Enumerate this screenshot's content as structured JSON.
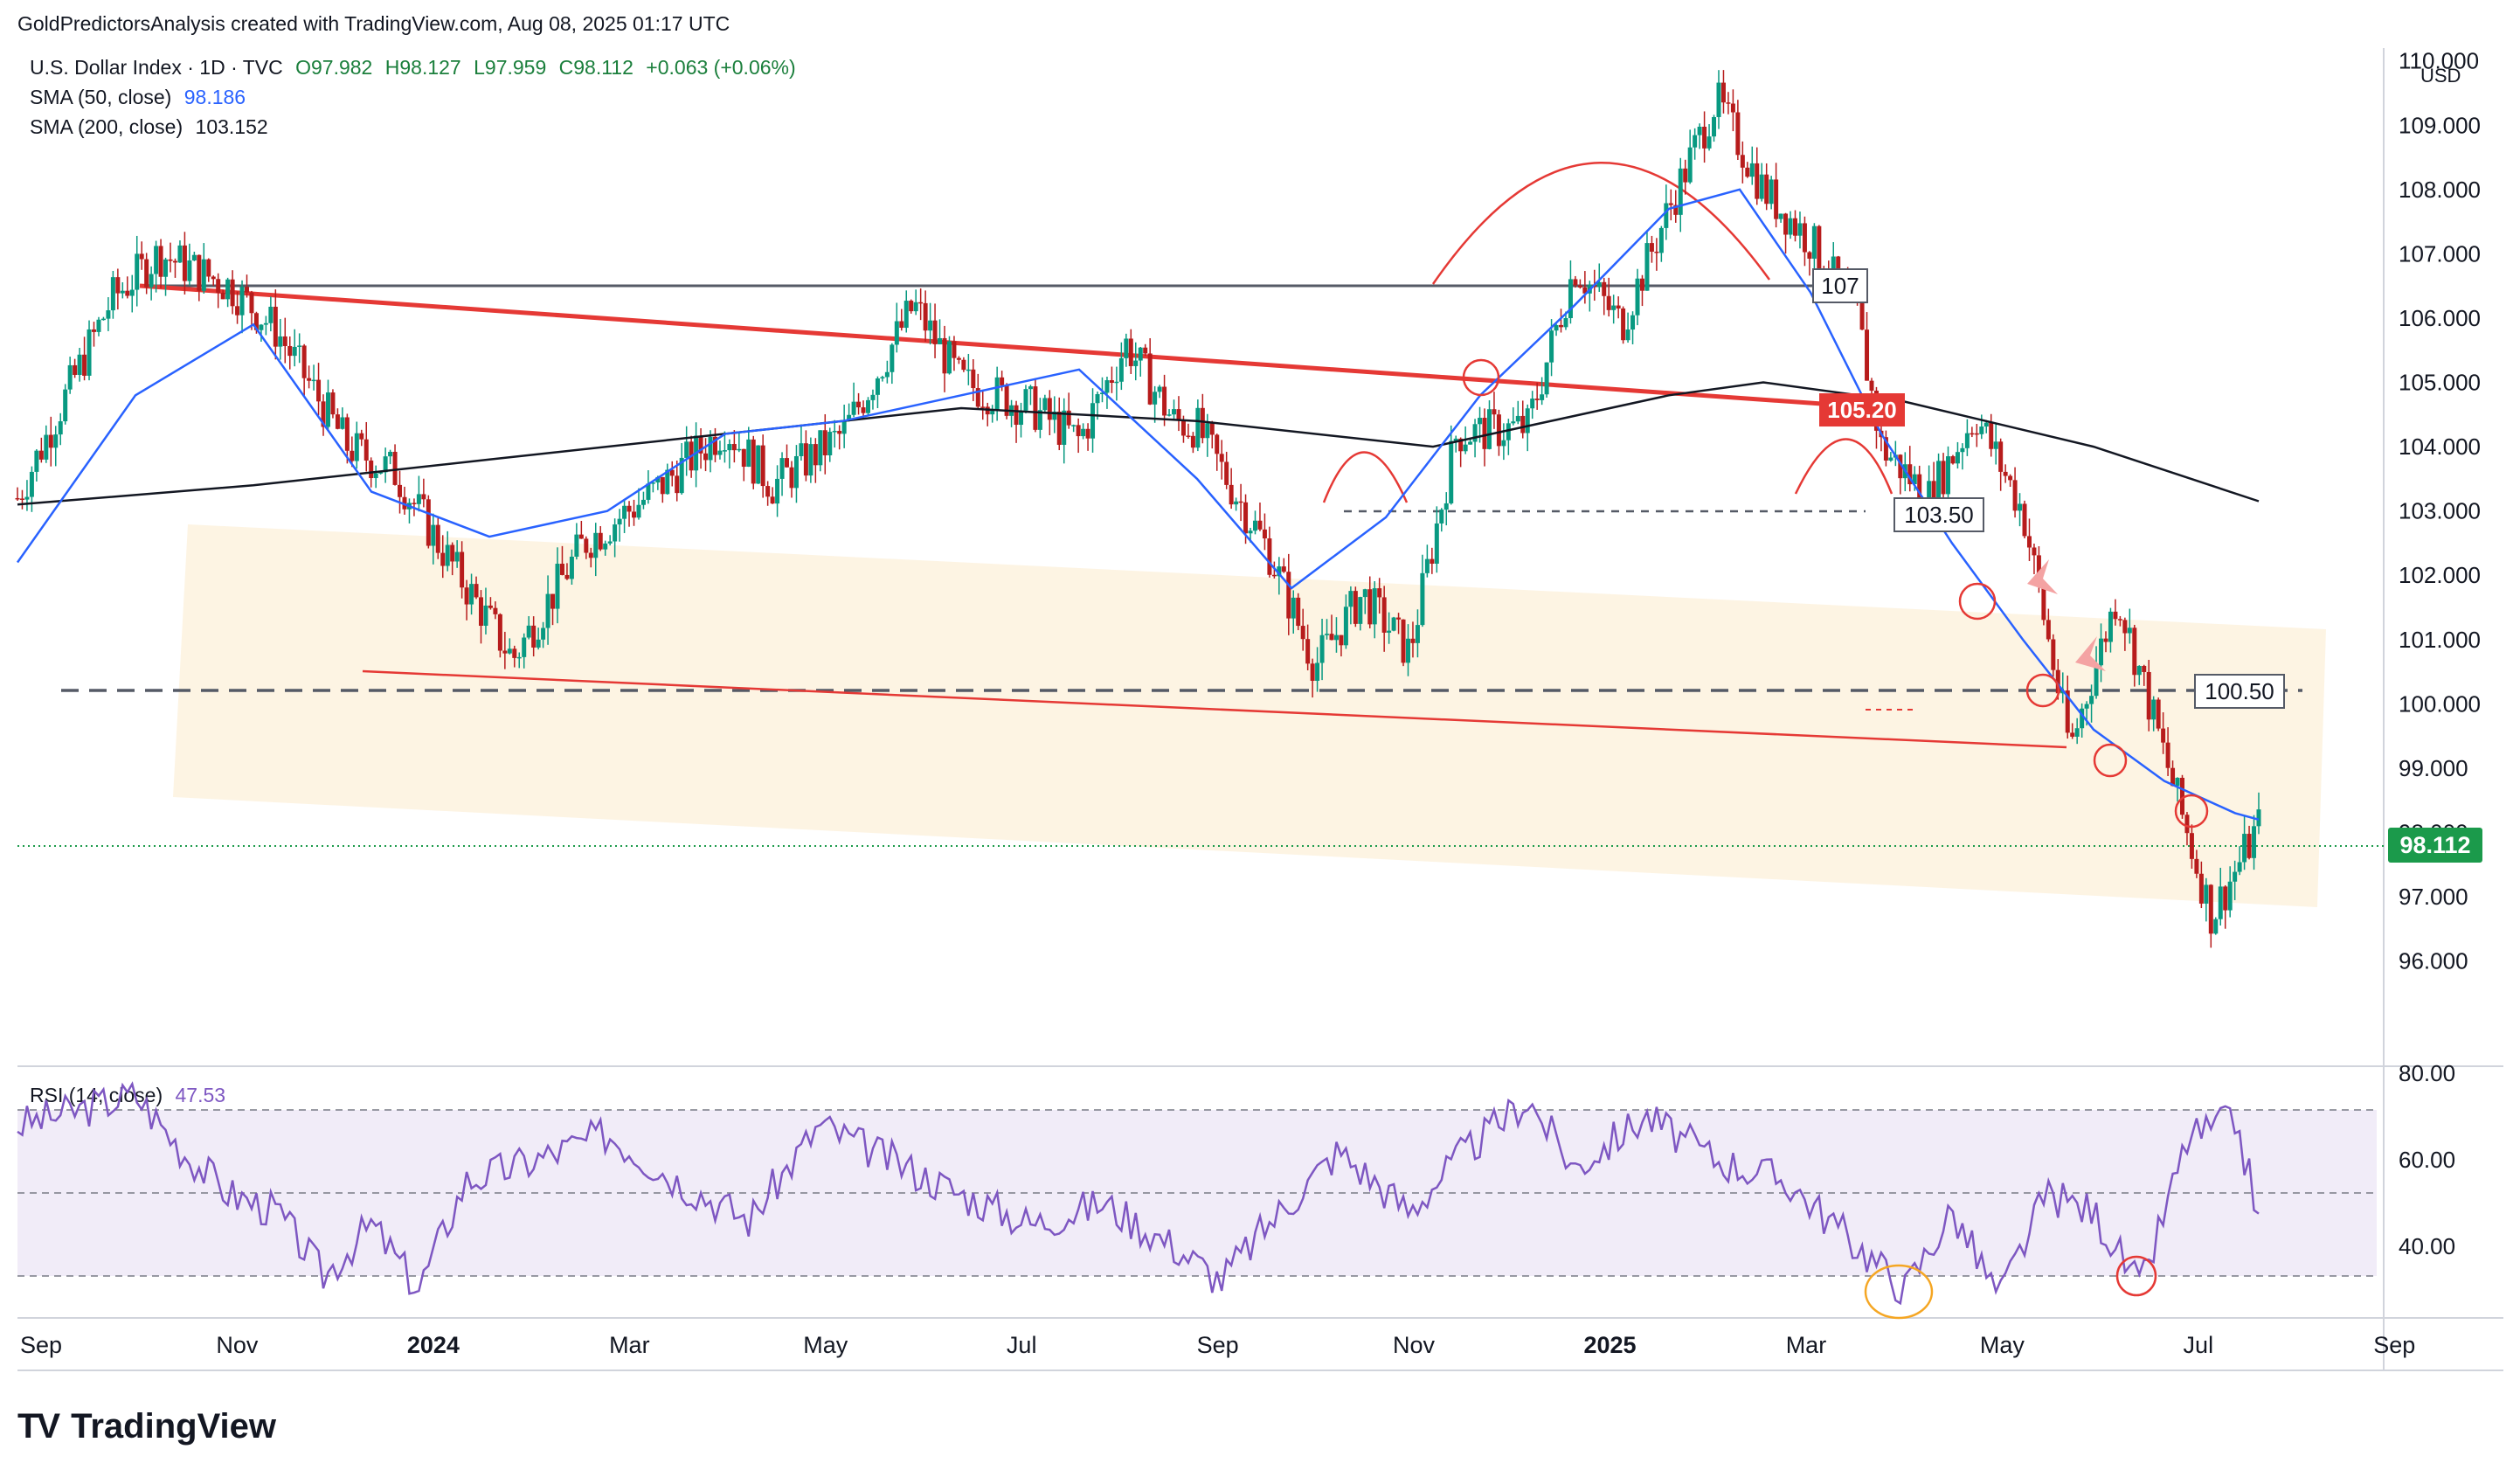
{
  "header": {
    "attribution": "GoldPredictorsAnalysis created with TradingView.com, Aug 08, 2025 01:17 UTC"
  },
  "legend": {
    "symbol": "U.S. Dollar Index · 1D · TVC",
    "open": "O97.982",
    "high": "H98.127",
    "low": "L97.959",
    "close": "C98.112",
    "change": "+0.063 (+0.06%)",
    "sma50_label": "SMA (50, close)",
    "sma50_value": "98.186",
    "sma200_label": "SMA (200, close)",
    "sma200_value": "103.152",
    "rsi_label": "RSI (14, close)",
    "rsi_value": "47.53"
  },
  "price_axis": {
    "currency": "USD",
    "current_price": "98.112",
    "current_price_color": "#1b9a4b"
  },
  "annotations": {
    "level_107": "107",
    "level_105": "105.20",
    "level_103": "103.50",
    "level_100": "100.50"
  },
  "brand": {
    "logo": "TV",
    "name": "TradingView"
  },
  "colors": {
    "up": "#089981",
    "down": "#b71c1c",
    "sma50": "#2962ff",
    "sma200": "#131722",
    "rsi": "#7e57c2",
    "channel_fill": "#fdf3e1",
    "trendline": "#e53935"
  },
  "chart_data": [
    {
      "type": "candlestick",
      "title": "U.S. Dollar Index · 1D · TVC",
      "x_ticks": [
        "Sep",
        "Nov",
        "2024",
        "Mar",
        "May",
        "Jul",
        "Sep",
        "Nov",
        "2025",
        "Mar",
        "May",
        "Jul",
        "Sep"
      ],
      "y_ticks": [
        "96.000",
        "97.000",
        "98.000",
        "99.000",
        "100.000",
        "101.000",
        "102.000",
        "103.000",
        "104.000",
        "105.000",
        "106.000",
        "107.000",
        "108.000",
        "109.000",
        "110.000"
      ],
      "ylim": [
        94.5,
        110.2
      ],
      "close_path_x": [
        0,
        0.04,
        0.06,
        0.09,
        0.11,
        0.14,
        0.16,
        0.18,
        0.21,
        0.24,
        0.27,
        0.3,
        0.32,
        0.35,
        0.38,
        0.4,
        0.43,
        0.45,
        0.47,
        0.49,
        0.5,
        0.53,
        0.55,
        0.57,
        0.59,
        0.61,
        0.64,
        0.66,
        0.68,
        0.7,
        0.72,
        0.74,
        0.76,
        0.78,
        0.79,
        0.81,
        0.83,
        0.85,
        0.87,
        0.89,
        0.91,
        0.93,
        0.95
      ],
      "close_path_y": [
        103.2,
        106.3,
        107.0,
        106.5,
        105.8,
        104.0,
        103.6,
        102.4,
        100.7,
        102.5,
        103.3,
        104.3,
        103.4,
        104.2,
        106.2,
        105.0,
        104.6,
        104.1,
        105.6,
        104.4,
        104.3,
        102.4,
        100.6,
        101.7,
        100.8,
        104.2,
        104.3,
        106.8,
        105.9,
        107.7,
        109.4,
        108.0,
        107.2,
        106.0,
        104.0,
        103.2,
        104.5,
        103.0,
        99.3,
        101.7,
        99.2,
        96.7,
        98.1
      ],
      "sma50_x": [
        0,
        0.05,
        0.1,
        0.15,
        0.2,
        0.25,
        0.3,
        0.35,
        0.4,
        0.45,
        0.5,
        0.54,
        0.58,
        0.62,
        0.66,
        0.7,
        0.73,
        0.76,
        0.79,
        0.82,
        0.85,
        0.88,
        0.91,
        0.94,
        0.95
      ],
      "sma50_y": [
        102.2,
        104.8,
        105.9,
        103.3,
        102.6,
        103.0,
        104.2,
        104.4,
        104.8,
        105.2,
        103.5,
        101.8,
        102.9,
        104.8,
        106.2,
        107.7,
        108.0,
        106.4,
        104.2,
        102.5,
        101.0,
        99.6,
        98.8,
        98.3,
        98.2
      ],
      "sma200_x": [
        0,
        0.1,
        0.2,
        0.3,
        0.4,
        0.5,
        0.6,
        0.7,
        0.74,
        0.8,
        0.88,
        0.95
      ],
      "sma200_y": [
        103.1,
        103.4,
        103.8,
        104.2,
        104.6,
        104.4,
        104.0,
        104.8,
        105.0,
        104.7,
        104.0,
        103.152
      ]
    },
    {
      "type": "line",
      "title": "RSI (14, close)",
      "y_ticks": [
        "40.00",
        "60.00",
        "80.00"
      ],
      "ylim": [
        25,
        80
      ],
      "bands": [
        30,
        50,
        70
      ],
      "x": [
        0,
        0.03,
        0.05,
        0.07,
        0.09,
        0.11,
        0.13,
        0.15,
        0.17,
        0.19,
        0.22,
        0.25,
        0.28,
        0.31,
        0.34,
        0.37,
        0.4,
        0.43,
        0.46,
        0.49,
        0.51,
        0.53,
        0.56,
        0.59,
        0.61,
        0.64,
        0.66,
        0.69,
        0.72,
        0.75,
        0.78,
        0.8,
        0.82,
        0.84,
        0.86,
        0.88,
        0.9,
        0.92,
        0.94,
        0.95
      ],
      "y": [
        68,
        72,
        75,
        62,
        52,
        48,
        33,
        45,
        30,
        55,
        60,
        66,
        55,
        46,
        68,
        60,
        52,
        45,
        50,
        40,
        32,
        45,
        62,
        48,
        60,
        74,
        58,
        70,
        60,
        55,
        40,
        30,
        48,
        28,
        52,
        48,
        30,
        65,
        69,
        47.53
      ]
    }
  ]
}
